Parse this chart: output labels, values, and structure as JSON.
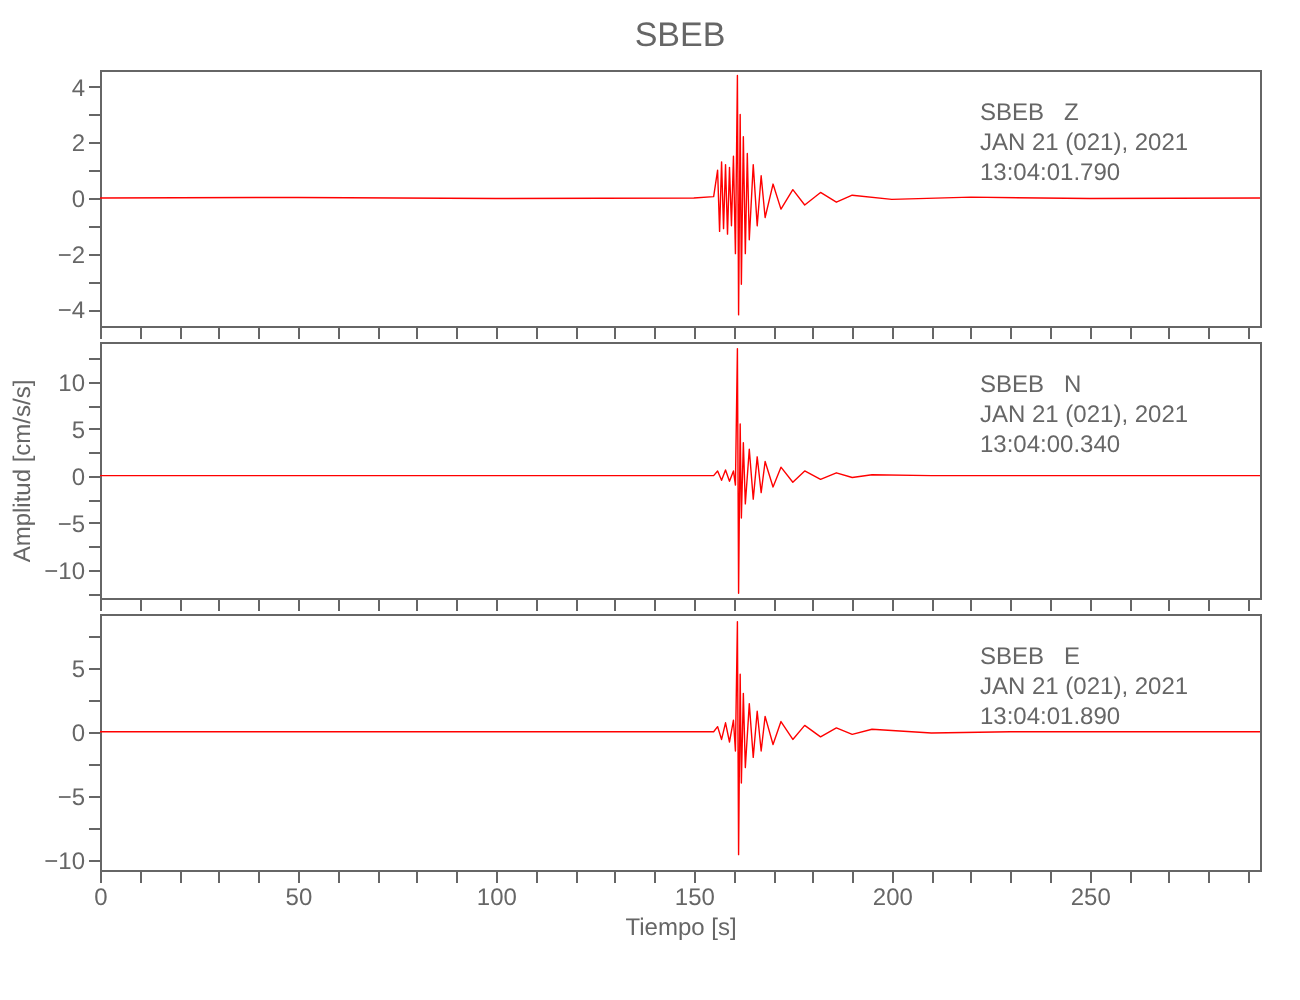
{
  "chart_data": [
    {
      "type": "line",
      "title": "SBEB",
      "annotations": [
        "SBEB   Z",
        "JAN 21 (021), 2021",
        "13:04:01.790"
      ],
      "tick_labels": "y",
      "grid": false,
      "xlim": [
        0,
        293
      ],
      "xticks": [
        0,
        {
          "value": 10,
          "label": null
        },
        {
          "value": 20,
          "label": null
        },
        {
          "value": 30,
          "label": null
        },
        {
          "value": 40,
          "label": null
        },
        50,
        {
          "value": 60,
          "label": null
        },
        {
          "value": 70,
          "label": null
        },
        {
          "value": 80,
          "label": null
        },
        {
          "value": 90,
          "label": null
        },
        100,
        {
          "value": 110,
          "label": null
        },
        {
          "value": 120,
          "label": null
        },
        {
          "value": 130,
          "label": null
        },
        {
          "value": 140,
          "label": null
        },
        150,
        {
          "value": 160,
          "label": null
        },
        {
          "value": 170,
          "label": null
        },
        {
          "value": 180,
          "label": null
        },
        {
          "value": 190,
          "label": null
        },
        200,
        {
          "value": 210,
          "label": null
        },
        {
          "value": 220,
          "label": null
        },
        {
          "value": 230,
          "label": null
        },
        {
          "value": 240,
          "label": null
        },
        250,
        {
          "value": 260,
          "label": null
        },
        {
          "value": 270,
          "label": null
        },
        {
          "value": 280,
          "label": null
        },
        {
          "value": 290,
          "label": null
        }
      ],
      "ylim": [
        -4.6,
        4.6
      ],
      "yticks": [
        -4,
        {
          "value": -3,
          "label": null
        },
        -2,
        {
          "value": -1,
          "label": null
        },
        0,
        {
          "value": 1,
          "label": null
        },
        2,
        {
          "value": 3,
          "label": null
        },
        4
      ],
      "series": [
        {
          "color": "#ff0000",
          "x": [
            0,
            50,
            100,
            150,
            155,
            156,
            156.5,
            157,
            157.5,
            158,
            158.5,
            159,
            159.5,
            160,
            160.5,
            161,
            161.3,
            161.7,
            162,
            162.5,
            163,
            163.5,
            164,
            165,
            166,
            167,
            168,
            170,
            172,
            175,
            178,
            182,
            186,
            190,
            200,
            220,
            250,
            293
          ],
          "values": [
            0,
            0.02,
            -0.02,
            0,
            0.05,
            1.0,
            -1.2,
            1.3,
            -1.1,
            1.2,
            -1.3,
            1.1,
            -1.0,
            1.5,
            -2.0,
            4.4,
            -4.2,
            3.0,
            -3.1,
            2.2,
            -2.0,
            1.6,
            -1.5,
            1.2,
            -1.0,
            0.8,
            -0.7,
            0.5,
            -0.4,
            0.3,
            -0.25,
            0.2,
            -0.15,
            0.1,
            -0.05,
            0.03,
            -0.02,
            0
          ]
        }
      ]
    },
    {
      "type": "line",
      "ylabel": "Amplitud [cm/s/s]",
      "annotations": [
        "SBEB   N",
        "JAN 21 (021), 2021",
        "13:04:00.340"
      ],
      "tick_labels": "y",
      "grid": false,
      "xlim": [
        0,
        293
      ],
      "xticks": [
        0,
        {
          "value": 10,
          "label": null
        },
        {
          "value": 20,
          "label": null
        },
        {
          "value": 30,
          "label": null
        },
        {
          "value": 40,
          "label": null
        },
        50,
        {
          "value": 60,
          "label": null
        },
        {
          "value": 70,
          "label": null
        },
        {
          "value": 80,
          "label": null
        },
        {
          "value": 90,
          "label": null
        },
        100,
        {
          "value": 110,
          "label": null
        },
        {
          "value": 120,
          "label": null
        },
        {
          "value": 130,
          "label": null
        },
        {
          "value": 140,
          "label": null
        },
        150,
        {
          "value": 160,
          "label": null
        },
        {
          "value": 170,
          "label": null
        },
        {
          "value": 180,
          "label": null
        },
        {
          "value": 190,
          "label": null
        },
        200,
        {
          "value": 210,
          "label": null
        },
        {
          "value": 220,
          "label": null
        },
        {
          "value": 230,
          "label": null
        },
        {
          "value": 240,
          "label": null
        },
        250,
        {
          "value": 260,
          "label": null
        },
        {
          "value": 270,
          "label": null
        },
        {
          "value": 280,
          "label": null
        },
        {
          "value": 290,
          "label": null
        }
      ],
      "ylim": [
        -13,
        14.2
      ],
      "yticks": [
        {
          "value": -12.5,
          "label": null
        },
        -10,
        {
          "value": -7.5,
          "label": null
        },
        -5,
        {
          "value": -2.5,
          "label": null
        },
        0,
        {
          "value": 2.5,
          "label": null
        },
        5,
        {
          "value": 7.5,
          "label": null
        },
        10,
        {
          "value": 12.5,
          "label": null
        }
      ],
      "series": [
        {
          "color": "#ff0000",
          "x": [
            0,
            100,
            155,
            156,
            157,
            158,
            159,
            160,
            160.5,
            161,
            161.3,
            161.7,
            162,
            162.5,
            163,
            164,
            165,
            166,
            167,
            168,
            170,
            172,
            175,
            178,
            182,
            186,
            190,
            195,
            210,
            250,
            293
          ],
          "values": [
            0,
            0,
            0,
            0.5,
            -0.5,
            0.6,
            -0.6,
            0.5,
            -1,
            13.5,
            -12.5,
            5.5,
            -4.5,
            3.5,
            -3,
            2.8,
            -2.5,
            2,
            -1.8,
            1.5,
            -1.2,
            0.9,
            -0.7,
            0.5,
            -0.4,
            0.3,
            -0.2,
            0.1,
            0,
            0,
            0
          ]
        }
      ]
    },
    {
      "type": "line",
      "xlabel": "Tiempo [s]",
      "annotations": [
        "SBEB   E",
        "JAN 21 (021), 2021",
        "13:04:01.890"
      ],
      "grid": false,
      "xlim": [
        0,
        293
      ],
      "xticks": [
        0,
        {
          "value": 10,
          "label": null
        },
        {
          "value": 20,
          "label": null
        },
        {
          "value": 30,
          "label": null
        },
        {
          "value": 40,
          "label": null
        },
        50,
        {
          "value": 60,
          "label": null
        },
        {
          "value": 70,
          "label": null
        },
        {
          "value": 80,
          "label": null
        },
        {
          "value": 90,
          "label": null
        },
        100,
        {
          "value": 110,
          "label": null
        },
        {
          "value": 120,
          "label": null
        },
        {
          "value": 130,
          "label": null
        },
        {
          "value": 140,
          "label": null
        },
        150,
        {
          "value": 160,
          "label": null
        },
        {
          "value": 170,
          "label": null
        },
        {
          "value": 180,
          "label": null
        },
        {
          "value": 190,
          "label": null
        },
        200,
        {
          "value": 210,
          "label": null
        },
        {
          "value": 220,
          "label": null
        },
        {
          "value": 230,
          "label": null
        },
        {
          "value": 240,
          "label": null
        },
        250,
        {
          "value": 260,
          "label": null
        },
        {
          "value": 270,
          "label": null
        },
        {
          "value": 280,
          "label": null
        },
        {
          "value": 290,
          "label": null
        }
      ],
      "ylim": [
        -10.8,
        9.2
      ],
      "yticks": [
        -10,
        {
          "value": -7.5,
          "label": null
        },
        -5,
        {
          "value": -2.5,
          "label": null
        },
        0,
        {
          "value": 2.5,
          "label": null
        },
        5,
        {
          "value": 7.5,
          "label": null
        }
      ],
      "series": [
        {
          "color": "#ff0000",
          "x": [
            0,
            100,
            155,
            156,
            157,
            158,
            159,
            160,
            160.5,
            161,
            161.3,
            161.7,
            162,
            162.5,
            163,
            164,
            165,
            166,
            167,
            168,
            170,
            172,
            175,
            178,
            182,
            186,
            190,
            195,
            210,
            230,
            260,
            293
          ],
          "values": [
            0,
            0,
            0,
            0.4,
            -0.6,
            0.7,
            -0.8,
            0.9,
            -1.5,
            8.6,
            -9.6,
            4.5,
            -4,
            3,
            -2.8,
            2.2,
            -2.0,
            1.6,
            -1.5,
            1.2,
            -1.0,
            0.8,
            -0.6,
            0.5,
            -0.4,
            0.3,
            -0.2,
            0.2,
            -0.1,
            0,
            0,
            0
          ]
        }
      ]
    }
  ]
}
